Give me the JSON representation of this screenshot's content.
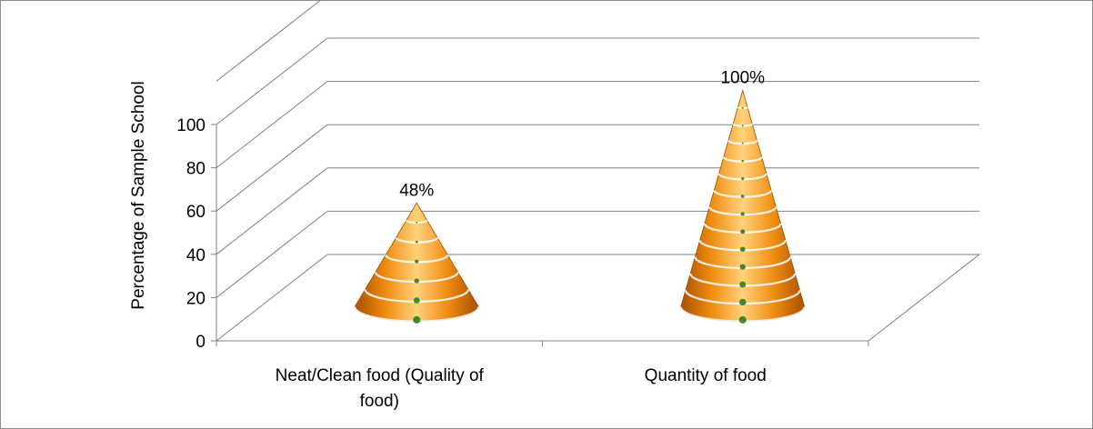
{
  "chart_data": {
    "type": "bar",
    "style": "3d-cone",
    "categories": [
      "Neat/Clean food (Quality of food)",
      "Quantity of food"
    ],
    "category_label_lines": [
      [
        "Neat/Clean food (Quality of",
        "food)"
      ],
      [
        "Quantity of food"
      ]
    ],
    "values": [
      48,
      100
    ],
    "data_labels": [
      "48%",
      "100%"
    ],
    "ylabel": "Percentage of Sample School",
    "ylim": [
      0,
      100
    ],
    "yticks": [
      0,
      20,
      40,
      60,
      80,
      100
    ],
    "grid": true,
    "legend": "none",
    "colors": {
      "cone": "#f08c10",
      "cone_light": "#ffd27a",
      "cone_dark": "#b85a00",
      "grid": "#808080"
    }
  }
}
